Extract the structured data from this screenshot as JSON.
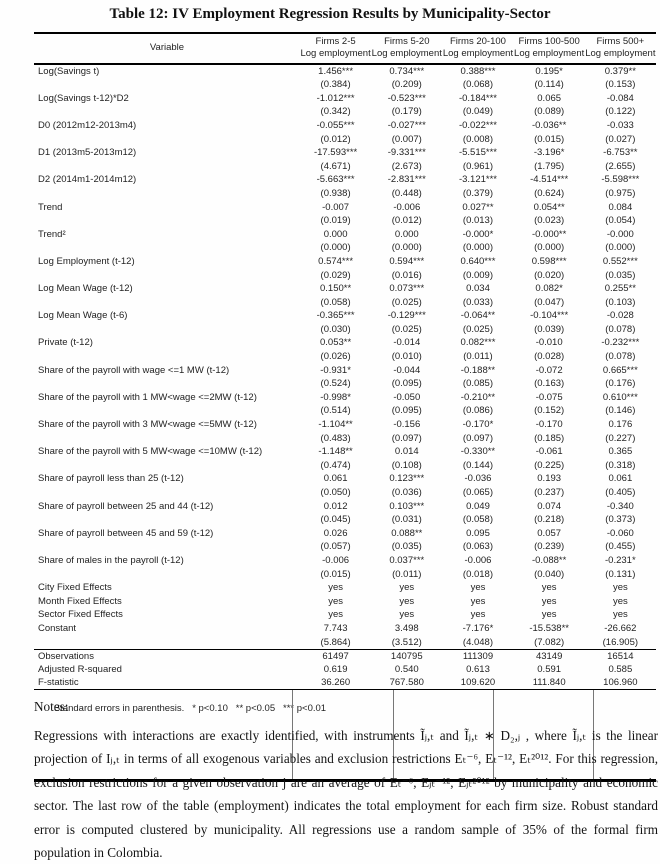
{
  "page_title": "Table 12: IV Employment Regression Results by Municipality-Sector",
  "table": {
    "variable_header": "Variable",
    "columns": [
      {
        "group": "Firms 2-5",
        "measure": "Log employment"
      },
      {
        "group": "Firms 5-20",
        "measure": "Log employment"
      },
      {
        "group": "Firms 20-100",
        "measure": "Log employment"
      },
      {
        "group": "Firms 100-500",
        "measure": "Log employment"
      },
      {
        "group": "Firms 500+",
        "measure": "Log employment"
      }
    ],
    "body_rows": [
      {
        "label": "Log(Savings t)",
        "values": [
          "1.456***",
          "0.734***",
          "0.388***",
          "0.195*",
          "0.379**"
        ],
        "std_errors": [
          "(0.384)",
          "(0.209)",
          "(0.068)",
          "(0.114)",
          "(0.153)"
        ]
      },
      {
        "label": "Log(Savings t-12)*D2",
        "values": [
          "-1.012***",
          "-0.523***",
          "-0.184***",
          "0.065",
          "-0.084"
        ],
        "std_errors": [
          "(0.342)",
          "(0.179)",
          "(0.049)",
          "(0.089)",
          "(0.122)"
        ]
      },
      {
        "label": "D0 (2012m12-2013m4)",
        "values": [
          "-0.055***",
          "-0.027***",
          "-0.022***",
          "-0.036**",
          "-0.033"
        ],
        "std_errors": [
          "(0.012)",
          "(0.007)",
          "(0.008)",
          "(0.015)",
          "(0.027)"
        ]
      },
      {
        "label": "D1 (2013m5-2013m12)",
        "values": [
          "-17.593***",
          "-9.331***",
          "-5.515***",
          "-3.196*",
          "-6.753**"
        ],
        "std_errors": [
          "(4.671)",
          "(2.673)",
          "(0.961)",
          "(1.795)",
          "(2.655)"
        ]
      },
      {
        "label": "D2 (2014m1-2014m12)",
        "values": [
          "-5.663***",
          "-2.831***",
          "-3.121***",
          "-4.514***",
          "-5.598***"
        ],
        "std_errors": [
          "(0.938)",
          "(0.448)",
          "(0.379)",
          "(0.624)",
          "(0.975)"
        ]
      },
      {
        "label": "Trend",
        "values": [
          "-0.007",
          "-0.006",
          "0.027**",
          "0.054**",
          "0.084"
        ],
        "std_errors": [
          "(0.019)",
          "(0.012)",
          "(0.013)",
          "(0.023)",
          "(0.054)"
        ]
      },
      {
        "label": "Trend²",
        "values": [
          "0.000",
          "0.000",
          "-0.000*",
          "-0.000**",
          "-0.000"
        ],
        "std_errors": [
          "(0.000)",
          "(0.000)",
          "(0.000)",
          "(0.000)",
          "(0.000)"
        ]
      },
      {
        "label": "Log Employment (t-12)",
        "values": [
          "0.574***",
          "0.594***",
          "0.640***",
          "0.598***",
          "0.552***"
        ],
        "std_errors": [
          "(0.029)",
          "(0.016)",
          "(0.009)",
          "(0.020)",
          "(0.035)"
        ]
      },
      {
        "label": "Log Mean Wage (t-12)",
        "values": [
          "0.150**",
          "0.073***",
          "0.034",
          "0.082*",
          "0.255**"
        ],
        "std_errors": [
          "(0.058)",
          "(0.025)",
          "(0.033)",
          "(0.047)",
          "(0.103)"
        ]
      },
      {
        "label": "Log Mean Wage (t-6)",
        "values": [
          "-0.365***",
          "-0.129***",
          "-0.064**",
          "-0.104***",
          "-0.028"
        ],
        "std_errors": [
          "(0.030)",
          "(0.025)",
          "(0.025)",
          "(0.039)",
          "(0.078)"
        ]
      },
      {
        "label": "Private (t-12)",
        "values": [
          "0.053**",
          "-0.014",
          "0.082***",
          "-0.010",
          "-0.232***"
        ],
        "std_errors": [
          "(0.026)",
          "(0.010)",
          "(0.011)",
          "(0.028)",
          "(0.078)"
        ]
      },
      {
        "label": "Share of the payroll with wage <=1 MW (t-12)",
        "values": [
          "-0.931*",
          "-0.044",
          "-0.188**",
          "-0.072",
          "0.665***"
        ],
        "std_errors": [
          "(0.524)",
          "(0.095)",
          "(0.085)",
          "(0.163)",
          "(0.176)"
        ]
      },
      {
        "label": "Share of the payroll with 1 MW<wage <=2MW (t-12)",
        "values": [
          "-0.998*",
          "-0.050",
          "-0.210**",
          "-0.075",
          "0.610***"
        ],
        "std_errors": [
          "(0.514)",
          "(0.095)",
          "(0.086)",
          "(0.152)",
          "(0.146)"
        ]
      },
      {
        "label": "Share of the payroll with 3 MW<wage <=5MW (t-12)",
        "values": [
          "-1.104**",
          "-0.156",
          "-0.170*",
          "-0.170",
          "0.176"
        ],
        "std_errors": [
          "(0.483)",
          "(0.097)",
          "(0.097)",
          "(0.185)",
          "(0.227)"
        ]
      },
      {
        "label": "Share of the payroll with 5 MW<wage <=10MW (t-12)",
        "values": [
          "-1.148**",
          "0.014",
          "-0.330**",
          "-0.061",
          "0.365"
        ],
        "std_errors": [
          "(0.474)",
          "(0.108)",
          "(0.144)",
          "(0.225)",
          "(0.318)"
        ]
      },
      {
        "label": "Share of payroll less than 25 (t-12)",
        "values": [
          "0.061",
          "0.123***",
          "-0.036",
          "0.193",
          "0.061"
        ],
        "std_errors": [
          "(0.050)",
          "(0.036)",
          "(0.065)",
          "(0.237)",
          "(0.405)"
        ]
      },
      {
        "label": "Share of payroll between 25 and 44 (t-12)",
        "values": [
          "0.012",
          "0.103***",
          "0.049",
          "0.074",
          "-0.340"
        ],
        "std_errors": [
          "(0.045)",
          "(0.031)",
          "(0.058)",
          "(0.218)",
          "(0.373)"
        ]
      },
      {
        "label": "Share of payroll between 45 and 59 (t-12)",
        "values": [
          "0.026",
          "0.088**",
          "0.095",
          "0.057",
          "-0.060"
        ],
        "std_errors": [
          "(0.057)",
          "(0.035)",
          "(0.063)",
          "(0.239)",
          "(0.455)"
        ]
      },
      {
        "label": "Share of males in the payroll (t-12)",
        "values": [
          "-0.006",
          "0.037***",
          "-0.006",
          "-0.088**",
          "-0.231*"
        ],
        "std_errors": [
          "(0.015)",
          "(0.011)",
          "(0.018)",
          "(0.040)",
          "(0.131)"
        ]
      },
      {
        "label": "City Fixed Effects",
        "values": [
          "yes",
          "yes",
          "yes",
          "yes",
          "yes"
        ]
      },
      {
        "label": "Month Fixed Effects",
        "values": [
          "yes",
          "yes",
          "yes",
          "yes",
          "yes"
        ]
      },
      {
        "label": "Sector Fixed Effects",
        "values": [
          "yes",
          "yes",
          "yes",
          "yes",
          "yes"
        ]
      },
      {
        "label": "Constant",
        "values": [
          "7.743",
          "3.498",
          "-7.176*",
          "-15.538**",
          "-26.662"
        ],
        "std_errors": [
          "(5.864)",
          "(3.512)",
          "(4.048)",
          "(7.082)",
          "(16.905)"
        ]
      }
    ],
    "summary_rows": [
      {
        "label": "Observations",
        "values": [
          "61497",
          "140795",
          "111309",
          "43149",
          "16514"
        ]
      },
      {
        "label": "Adjusted R-squared",
        "values": [
          "0.619",
          "0.540",
          "0.613",
          "0.591",
          "0.585"
        ]
      },
      {
        "label": "F-statistic",
        "values": [
          "36.260",
          "767.580",
          "109.620",
          "111.840",
          "106.960"
        ]
      }
    ],
    "footnote": "Standard errors in parenthesis.   * p<0.10   ** p<0.05   *** p<0.01"
  },
  "notes": {
    "heading": "Notes:",
    "paragraph": "Regressions with interactions are exactly identified, with instruments Ĩⱼ,ₜ and Ĩⱼ,ₜ ∗ D₂,ⱼ , where Ĩⱼ,ₜ is the linear projection of Iⱼ,ₜ in terms of all exogenous variables and exclusion restrictions Eₜ⁻⁶, Eₜ⁻¹², Eₜ²⁰¹². For this regression, exclusion restrictions for a given observation j are an average of Eₜ⁻⁶, Eⱼₜ⁻¹², Eⱼₜ²⁰¹² by municipality and economic sector. The last row of the table (employment) indicates the total employment for each firm size. Robust standard error is computed clustered by municipality. All regressions use a random sample of 35% of the formal firm population in Colombia."
  }
}
